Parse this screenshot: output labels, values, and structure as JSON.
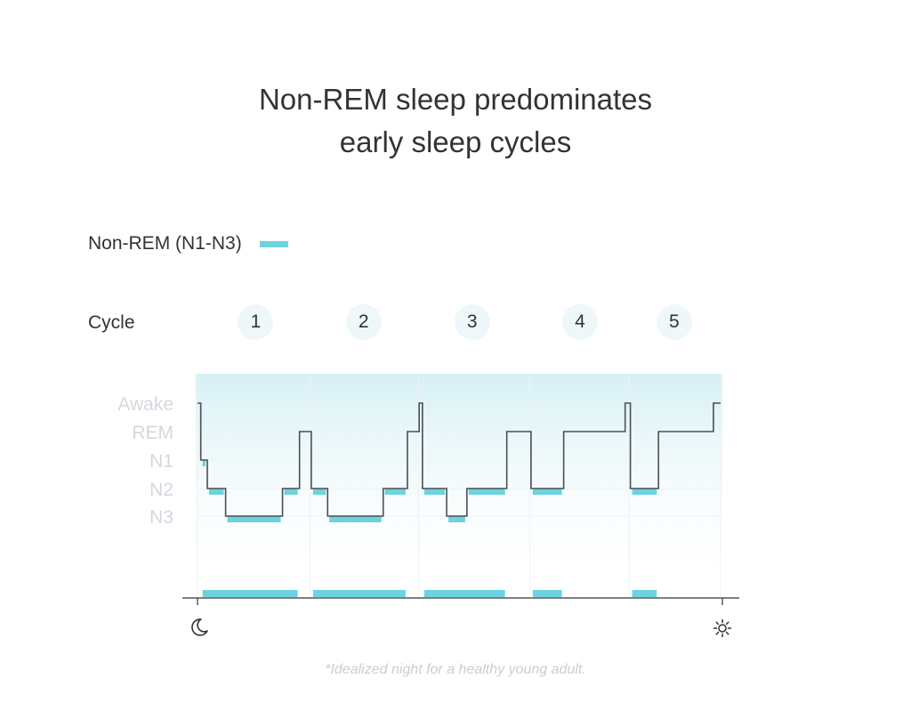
{
  "title_lines": [
    "Non-REM sleep predominates",
    "early sleep cycles"
  ],
  "legend": {
    "label": "Non-REM (N1-N3)",
    "color": "#6dd3df"
  },
  "cycles": {
    "label": "Cycle",
    "items": [
      "1",
      "2",
      "3",
      "4",
      "5"
    ]
  },
  "footnote": "*Idealized night for a healthy young adult.",
  "icons": {
    "start": "moon-icon",
    "end": "sun-icon"
  },
  "chart_data": {
    "type": "line",
    "y_categories": [
      "Awake",
      "REM",
      "N1",
      "N2",
      "N3"
    ],
    "x_unit": "hours",
    "xlim": [
      0,
      8
    ],
    "hypnogram": [
      [
        0.0,
        "Awake"
      ],
      [
        0.05,
        "N1"
      ],
      [
        0.15,
        "N2"
      ],
      [
        0.43,
        "N3"
      ],
      [
        1.3,
        "N2"
      ],
      [
        1.56,
        "REM"
      ],
      [
        1.74,
        "N2"
      ],
      [
        1.99,
        "N3"
      ],
      [
        2.84,
        "N2"
      ],
      [
        3.21,
        "REM"
      ],
      [
        3.39,
        "Awake"
      ],
      [
        3.44,
        "N2"
      ],
      [
        3.81,
        "N3"
      ],
      [
        4.12,
        "N2"
      ],
      [
        4.73,
        "REM"
      ],
      [
        5.1,
        "N2"
      ],
      [
        5.6,
        "REM"
      ],
      [
        6.54,
        "Awake"
      ],
      [
        6.62,
        "N2"
      ],
      [
        7.05,
        "REM"
      ],
      [
        7.89,
        "Awake"
      ],
      [
        8.0,
        "Awake"
      ]
    ],
    "nrem_blocks": [
      [
        0.05,
        1.56
      ],
      [
        1.74,
        3.21
      ],
      [
        3.44,
        4.73
      ],
      [
        5.1,
        5.6
      ],
      [
        6.62,
        7.05
      ]
    ],
    "cycle_centers": [
      0.89,
      2.54,
      4.2,
      5.85,
      7.29
    ],
    "colors": {
      "line": "#4a4f55",
      "nrem": "#6dd3df",
      "band_top": "#d6f0f4",
      "grid": "#eef2f4",
      "axis": "#333333"
    }
  }
}
